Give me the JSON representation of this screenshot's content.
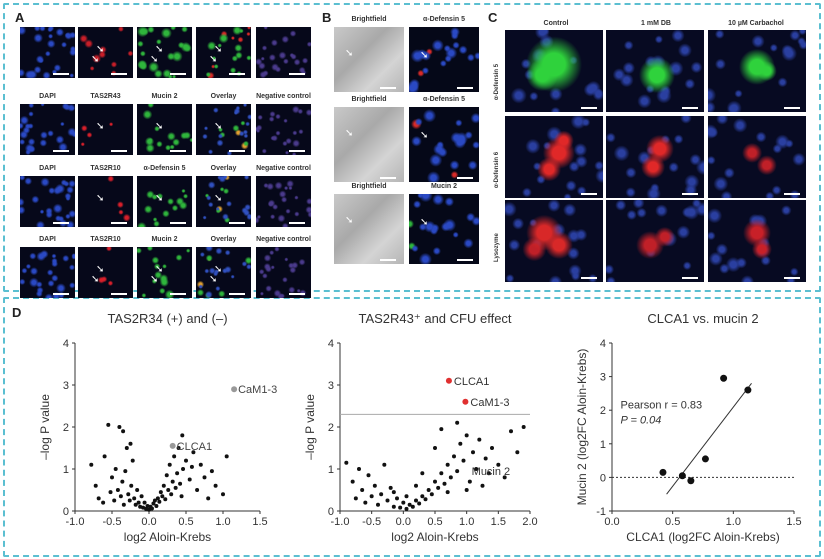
{
  "panels": {
    "A": "A",
    "B": "B",
    "C": "C",
    "D": "D"
  },
  "panelA": {
    "rows": [
      [
        "DAPI",
        "TAS2R43",
        "Mucin 2",
        "Overlay",
        "Negative control"
      ],
      [
        "DAPI",
        "TAS2R10",
        "α-Defensin 5",
        "Overlay",
        "Negative control"
      ],
      [
        "DAPI",
        "TAS2R10",
        "Mucin 2",
        "Overlay",
        "Negative control"
      ]
    ]
  },
  "panelB": {
    "labels": [
      [
        "Brightfield",
        "α-Defensin 5"
      ],
      [
        "Brightfield",
        "α-Defensin 5"
      ],
      [
        "Brightfield",
        "Mucin 2"
      ]
    ]
  },
  "panelC": {
    "columns": [
      "Control",
      "1 mM DB",
      "10 µM Carbachol"
    ],
    "rows": [
      "α-Defensin 5",
      "α-Defensin 6",
      "Lysozyme"
    ]
  },
  "colors": {
    "frame": "#5bbfd1",
    "dapi": "#1f3fa8",
    "red": "#e0242a",
    "green": "#2fc93a",
    "highlight": "#e03030",
    "gray_point": "#999999"
  },
  "chart_data": [
    {
      "type": "scatter",
      "title": "TAS2R34 (+) and (–)",
      "xlabel": "log2 Aloin-Krebs",
      "ylabel": "–log P value",
      "xlim": [
        -1.0,
        1.5
      ],
      "ylim": [
        0,
        4
      ],
      "xticks": [
        "-1.0",
        "-0.5",
        "0.0",
        "0.5",
        "1.0",
        "1.5"
      ],
      "yticks": [
        "0",
        "1",
        "2",
        "3",
        "4"
      ],
      "annotations": [
        {
          "label": "CaM1-3",
          "x": 1.15,
          "y": 2.9
        },
        {
          "label": "CLCA1",
          "x": 0.32,
          "y": 1.55
        }
      ],
      "points": [
        [
          -0.78,
          1.1
        ],
        [
          -0.72,
          0.6
        ],
        [
          -0.68,
          0.3
        ],
        [
          -0.62,
          0.2
        ],
        [
          -0.55,
          2.05
        ],
        [
          -0.52,
          0.45
        ],
        [
          -0.5,
          0.8
        ],
        [
          -0.47,
          0.25
        ],
        [
          -0.45,
          1.0
        ],
        [
          -0.42,
          0.5
        ],
        [
          -0.4,
          2.0
        ],
        [
          -0.38,
          0.35
        ],
        [
          -0.36,
          0.7
        ],
        [
          -0.34,
          0.15
        ],
        [
          -0.32,
          0.95
        ],
        [
          -0.3,
          1.5
        ],
        [
          -0.28,
          0.4
        ],
        [
          -0.26,
          0.25
        ],
        [
          -0.24,
          0.6
        ],
        [
          -0.22,
          1.2
        ],
        [
          -0.2,
          0.3
        ],
        [
          -0.18,
          0.15
        ],
        [
          -0.16,
          0.5
        ],
        [
          -0.14,
          0.2
        ],
        [
          -0.12,
          0.1
        ],
        [
          -0.1,
          0.35
        ],
        [
          -0.08,
          0.08
        ],
        [
          -0.06,
          0.2
        ],
        [
          -0.04,
          0.05
        ],
        [
          -0.02,
          0.12
        ],
        [
          0.0,
          0.03
        ],
        [
          0.02,
          0.1
        ],
        [
          0.04,
          0.06
        ],
        [
          0.06,
          0.18
        ],
        [
          0.08,
          0.25
        ],
        [
          0.1,
          0.12
        ],
        [
          0.12,
          0.3
        ],
        [
          0.14,
          0.22
        ],
        [
          0.16,
          0.45
        ],
        [
          0.18,
          0.35
        ],
        [
          0.2,
          0.6
        ],
        [
          0.22,
          0.28
        ],
        [
          0.24,
          0.85
        ],
        [
          0.26,
          0.5
        ],
        [
          0.28,
          1.1
        ],
        [
          0.3,
          0.4
        ],
        [
          0.32,
          0.7
        ],
        [
          0.34,
          1.3
        ],
        [
          0.36,
          0.55
        ],
        [
          0.38,
          0.9
        ],
        [
          0.4,
          1.5
        ],
        [
          0.42,
          0.65
        ],
        [
          0.44,
          0.35
        ],
        [
          0.46,
          1.0
        ],
        [
          0.5,
          1.2
        ],
        [
          0.55,
          0.75
        ],
        [
          0.6,
          1.4
        ],
        [
          0.65,
          0.5
        ],
        [
          0.7,
          1.1
        ],
        [
          0.75,
          0.8
        ],
        [
          0.8,
          0.3
        ],
        [
          0.85,
          0.95
        ],
        [
          0.9,
          0.6
        ],
        [
          1.0,
          0.4
        ],
        [
          1.05,
          1.3
        ],
        [
          -0.6,
          1.3
        ],
        [
          -0.35,
          1.9
        ],
        [
          -0.25,
          1.6
        ],
        [
          0.45,
          1.8
        ],
        [
          0.58,
          1.05
        ]
      ],
      "highlight": [
        [
          1.15,
          2.9
        ],
        [
          0.32,
          1.55
        ]
      ]
    },
    {
      "type": "scatter",
      "title": "TAS2R43⁺ and CFU effect",
      "xlabel": "log2 Aloin-Krebs",
      "ylabel": "–log P value",
      "xlim": [
        -1.0,
        2.0
      ],
      "ylim": [
        0,
        4
      ],
      "xticks": [
        "-1.0",
        "-0.5",
        "0.0",
        "0.5",
        "1.0",
        "1.5",
        "2.0"
      ],
      "yticks": [
        "0",
        "1",
        "2",
        "3",
        "4"
      ],
      "threshold_y": 2.3,
      "annotations": [
        {
          "label": "CLCA1",
          "x": 0.72,
          "y": 3.1
        },
        {
          "label": "CaM1-3",
          "x": 0.98,
          "y": 2.6
        },
        {
          "label": "Mucin 2",
          "x": 1.0,
          "y": 0.95
        }
      ],
      "points": [
        [
          -0.9,
          1.15
        ],
        [
          -0.8,
          0.7
        ],
        [
          -0.75,
          0.3
        ],
        [
          -0.7,
          1.0
        ],
        [
          -0.65,
          0.5
        ],
        [
          -0.6,
          0.2
        ],
        [
          -0.55,
          0.85
        ],
        [
          -0.5,
          0.35
        ],
        [
          -0.45,
          0.6
        ],
        [
          -0.4,
          0.15
        ],
        [
          -0.35,
          0.4
        ],
        [
          -0.3,
          1.1
        ],
        [
          -0.25,
          0.25
        ],
        [
          -0.2,
          0.55
        ],
        [
          -0.15,
          0.1
        ],
        [
          -0.1,
          0.3
        ],
        [
          -0.05,
          0.08
        ],
        [
          0.0,
          0.2
        ],
        [
          0.05,
          0.05
        ],
        [
          0.1,
          0.15
        ],
        [
          0.15,
          0.1
        ],
        [
          0.2,
          0.25
        ],
        [
          0.25,
          0.18
        ],
        [
          0.3,
          0.35
        ],
        [
          0.35,
          0.28
        ],
        [
          0.4,
          0.5
        ],
        [
          0.45,
          0.4
        ],
        [
          0.5,
          0.7
        ],
        [
          0.55,
          0.55
        ],
        [
          0.6,
          0.9
        ],
        [
          0.65,
          0.65
        ],
        [
          0.7,
          1.1
        ],
        [
          0.75,
          0.8
        ],
        [
          0.8,
          1.3
        ],
        [
          0.85,
          0.95
        ],
        [
          0.9,
          1.6
        ],
        [
          0.95,
          1.2
        ],
        [
          1.0,
          1.8
        ],
        [
          1.05,
          0.7
        ],
        [
          1.1,
          1.4
        ],
        [
          1.15,
          1.0
        ],
        [
          1.2,
          1.7
        ],
        [
          1.25,
          0.6
        ],
        [
          1.3,
          1.25
        ],
        [
          1.35,
          0.9
        ],
        [
          1.4,
          1.5
        ],
        [
          1.5,
          1.1
        ],
        [
          1.6,
          0.8
        ],
        [
          1.7,
          1.9
        ],
        [
          1.8,
          1.4
        ],
        [
          1.9,
          2.0
        ],
        [
          0.3,
          0.9
        ],
        [
          0.5,
          1.5
        ],
        [
          0.6,
          1.95
        ],
        [
          0.85,
          2.1
        ],
        [
          0.2,
          0.6
        ],
        [
          0.05,
          0.35
        ],
        [
          -0.15,
          0.45
        ],
        [
          0.7,
          0.45
        ],
        [
          1.0,
          0.5
        ]
      ],
      "highlight": [
        [
          0.72,
          3.1
        ],
        [
          0.98,
          2.6
        ]
      ]
    },
    {
      "type": "scatter",
      "title": "CLCA1 vs. mucin 2",
      "xlabel": "CLCA1 (log2FC Aloin-Krebs)",
      "ylabel": "Mucin 2 (log2FC Aloin-Krebs)",
      "xlim": [
        0.0,
        1.5
      ],
      "ylim": [
        -1,
        4
      ],
      "xticks": [
        "0.0",
        "0.5",
        "1.0",
        "1.5"
      ],
      "yticks": [
        "-1",
        "0",
        "1",
        "2",
        "3",
        "4"
      ],
      "annotations": [
        {
          "label": "Pearson r = 0.83"
        },
        {
          "label": "P = 0.04"
        }
      ],
      "points": [
        [
          0.42,
          0.15
        ],
        [
          0.58,
          0.05
        ],
        [
          0.65,
          -0.1
        ],
        [
          0.77,
          0.55
        ],
        [
          0.92,
          2.95
        ],
        [
          1.12,
          2.6
        ]
      ],
      "fit_line": [
        [
          0.45,
          -0.5
        ],
        [
          1.15,
          2.8
        ]
      ],
      "zero_line": 0
    }
  ]
}
